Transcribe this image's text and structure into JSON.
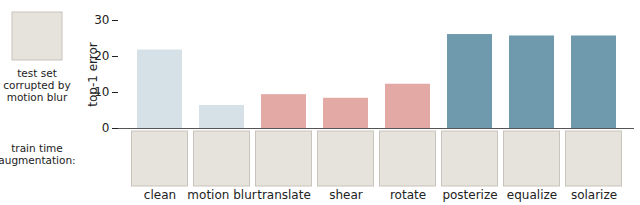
{
  "chart_data": {
    "type": "bar",
    "categories": [
      "clean",
      "motion blur",
      "translate",
      "shear",
      "rotate",
      "posterize",
      "equalize",
      "solarize"
    ],
    "values": [
      21.8,
      6.4,
      9.4,
      8.4,
      12.3,
      26.1,
      25.7,
      25.7
    ],
    "colors": [
      "#d5e0e7",
      "#d5e0e7",
      "#e3aaa5",
      "#e3aaa5",
      "#e3aaa5",
      "#6f99ad",
      "#6f99ad",
      "#6f99ad"
    ],
    "ylabel": "top-1 error",
    "xlabel": "train time augmentation:",
    "annotations": [
      "test set corrupted by motion blur"
    ],
    "ylim": [
      0,
      30
    ],
    "yticks": [
      0,
      10,
      20,
      30
    ],
    "grid": false
  }
}
